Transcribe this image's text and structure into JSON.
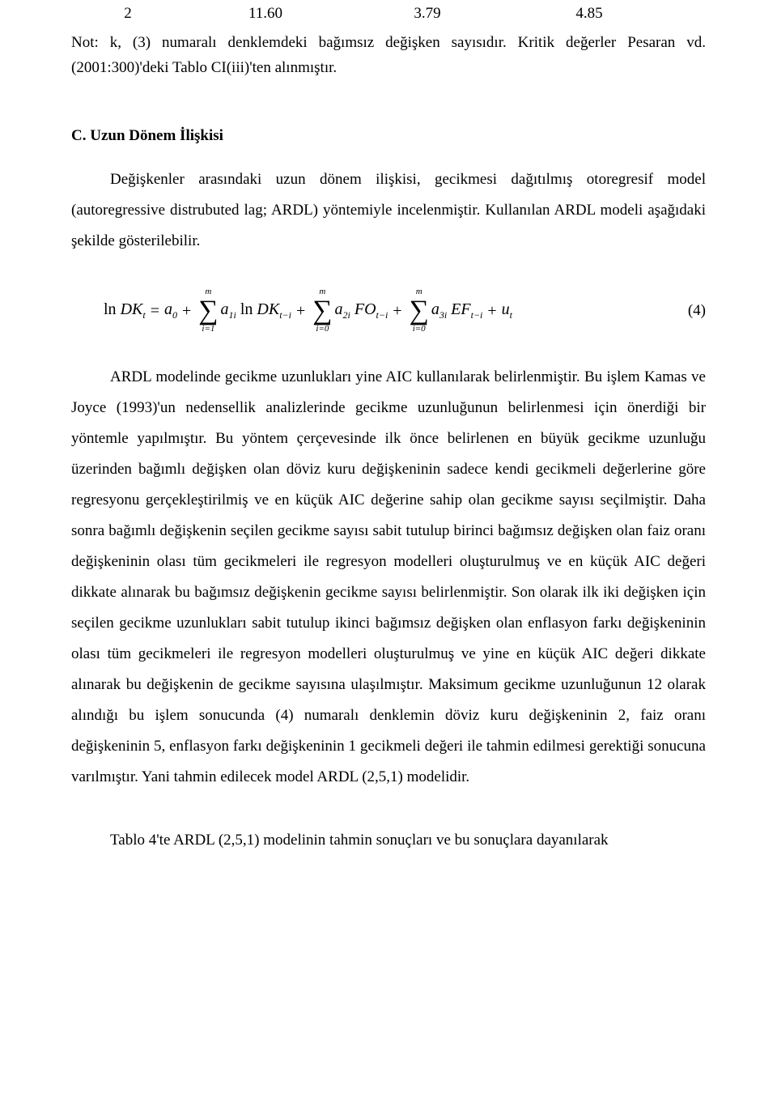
{
  "table_row": {
    "c1": "2",
    "c2": "11.60",
    "c3": "3.79",
    "c4": "4.85"
  },
  "note_text": "Not: k, (3) numaralı denklemdeki bağımsız değişken sayısıdır. Kritik değerler Pesaran vd. (2001:300)'deki Tablo CI(iii)'ten alınmıştır.",
  "section_heading": "C. Uzun Dönem İlişkisi",
  "intro_para": "Değişkenler arasındaki uzun dönem ilişkisi, gecikmesi dağıtılmış otoregresif model (autoregressive distrubuted lag; ARDL) yöntemiyle incelenmiştir. Kullanılan ARDL modeli aşağıdaki şekilde gösterilebilir.",
  "equation": {
    "lhs": "ln",
    "DK": "DK",
    "t": "t",
    "eq": "=",
    "a0": "a",
    "zero": "0",
    "plus": "+",
    "m": "m",
    "i1": "i=1",
    "i0": "i=0",
    "a": "a",
    "one_i": "1i",
    "two_i": "2i",
    "three_i": "3i",
    "FO": "FO",
    "EF": "EF",
    "t_minus_i": "t−i",
    "u": "u"
  },
  "eq_number": "(4)",
  "main_para": "ARDL modelinde gecikme uzunlukları yine AIC kullanılarak belirlenmiştir. Bu işlem Kamas ve Joyce (1993)'un nedensellik analizlerinde gecikme uzunluğunun belirlenmesi için önerdiği bir yöntemle yapılmıştır. Bu yöntem çerçevesinde ilk önce belirlenen en büyük gecikme uzunluğu üzerinden bağımlı değişken olan döviz kuru değişkeninin sadece kendi gecikmeli değerlerine göre regresyonu gerçekleştirilmiş ve en küçük AIC değerine sahip olan gecikme sayısı seçilmiştir. Daha sonra bağımlı değişkenin seçilen gecikme sayısı sabit tutulup birinci bağımsız değişken olan faiz oranı değişkeninin olası tüm gecikmeleri ile regresyon modelleri oluşturulmuş ve en küçük AIC değeri dikkate alınarak bu bağımsız değişkenin gecikme sayısı belirlenmiştir. Son olarak ilk iki değişken için seçilen gecikme uzunlukları sabit tutulup ikinci bağımsız değişken olan enflasyon farkı değişkeninin olası tüm gecikmeleri ile regresyon modelleri oluşturulmuş ve yine en küçük AIC değeri dikkate alınarak bu değişkenin de gecikme sayısına ulaşılmıştır. Maksimum gecikme uzunluğunun 12 olarak alındığı bu işlem sonucunda (4) numaralı denklemin döviz kuru değişkeninin 2, faiz oranı değişkeninin 5, enflasyon farkı değişkeninin 1 gecikmeli değeri ile tahmin edilmesi gerektiği sonucuna varılmıştır. Yani tahmin edilecek model ARDL (2,5,1) modelidir.",
  "tail_para": "Tablo 4'te ARDL (2,5,1) modelinin tahmin sonuçları ve bu sonuçlara dayanılarak"
}
